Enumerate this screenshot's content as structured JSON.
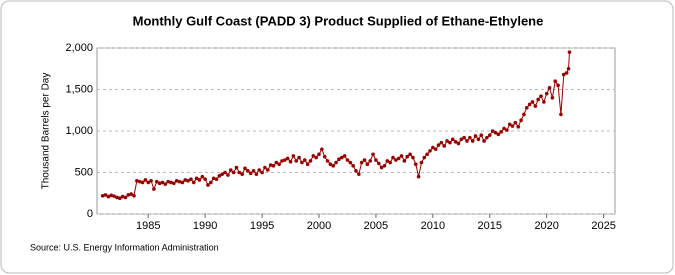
{
  "chart_data": {
    "type": "line",
    "title": "Monthly Gulf Coast (PADD 3) Product Supplied of Ethane-Ethylene",
    "y_label": "Thousand Barrels per Day",
    "source": "Source: U.S. Energy Information Administration",
    "color": "#990000",
    "grid": true,
    "xlim": [
      1980.5,
      2026
    ],
    "ylim": [
      0,
      2000
    ],
    "xticks": [
      1985,
      1990,
      1995,
      2000,
      2005,
      2010,
      2015,
      2020,
      2025
    ],
    "yticks": [
      0,
      500,
      {
        "value": 1000,
        "label": "1,000"
      },
      {
        "value": 1500,
        "label": "1,500"
      },
      {
        "value": 2000,
        "label": "2,000"
      }
    ],
    "x": [
      1981,
      1981.25,
      1981.5,
      1981.75,
      1982,
      1982.25,
      1982.5,
      1982.75,
      1983,
      1983.25,
      1983.5,
      1983.75,
      1984,
      1984.25,
      1984.5,
      1984.75,
      1985,
      1985.25,
      1985.5,
      1985.75,
      1986,
      1986.25,
      1986.5,
      1986.75,
      1987,
      1987.25,
      1987.5,
      1987.75,
      1988,
      1988.25,
      1988.5,
      1988.75,
      1989,
      1989.25,
      1989.5,
      1989.75,
      1990,
      1990.25,
      1990.5,
      1990.75,
      1991,
      1991.25,
      1991.5,
      1991.75,
      1992,
      1992.25,
      1992.5,
      1992.75,
      1993,
      1993.25,
      1993.5,
      1993.75,
      1994,
      1994.25,
      1994.5,
      1994.75,
      1995,
      1995.25,
      1995.5,
      1995.75,
      1996,
      1996.25,
      1996.5,
      1996.75,
      1997,
      1997.25,
      1997.5,
      1997.75,
      1998,
      1998.25,
      1998.5,
      1998.75,
      1999,
      1999.25,
      1999.5,
      1999.75,
      2000,
      2000.25,
      2000.5,
      2000.75,
      2001,
      2001.25,
      2001.5,
      2001.75,
      2002,
      2002.25,
      2002.5,
      2002.75,
      2003,
      2003.25,
      2003.5,
      2003.75,
      2004,
      2004.25,
      2004.5,
      2004.75,
      2005,
      2005.25,
      2005.5,
      2005.75,
      2006,
      2006.25,
      2006.5,
      2006.75,
      2007,
      2007.25,
      2007.5,
      2007.75,
      2008,
      2008.25,
      2008.5,
      2008.75,
      2009,
      2009.25,
      2009.5,
      2009.75,
      2010,
      2010.25,
      2010.5,
      2010.75,
      2011,
      2011.25,
      2011.5,
      2011.75,
      2012,
      2012.25,
      2012.5,
      2012.75,
      2013,
      2013.25,
      2013.5,
      2013.75,
      2014,
      2014.25,
      2014.5,
      2014.75,
      2015,
      2015.25,
      2015.5,
      2015.75,
      2016,
      2016.25,
      2016.5,
      2016.75,
      2017,
      2017.25,
      2017.5,
      2017.75,
      2018,
      2018.25,
      2018.5,
      2018.75,
      2019,
      2019.25,
      2019.5,
      2019.75,
      2020,
      2020.25,
      2020.5,
      2020.75,
      2021,
      2021.25,
      2021.5,
      2021.75,
      2021.92,
      2022
    ],
    "values": [
      220,
      230,
      210,
      225,
      215,
      200,
      190,
      210,
      200,
      230,
      240,
      220,
      400,
      390,
      380,
      410,
      380,
      400,
      300,
      390,
      370,
      380,
      360,
      390,
      380,
      370,
      400,
      390,
      380,
      410,
      400,
      420,
      380,
      430,
      410,
      450,
      420,
      350,
      380,
      430,
      420,
      460,
      480,
      500,
      470,
      530,
      500,
      560,
      500,
      480,
      550,
      520,
      490,
      520,
      480,
      530,
      500,
      560,
      530,
      590,
      580,
      620,
      600,
      640,
      650,
      670,
      630,
      700,
      640,
      680,
      620,
      650,
      600,
      640,
      700,
      680,
      720,
      780,
      690,
      640,
      600,
      580,
      620,
      660,
      680,
      700,
      650,
      620,
      580,
      520,
      480,
      620,
      650,
      600,
      640,
      720,
      650,
      610,
      560,
      580,
      640,
      620,
      680,
      650,
      670,
      700,
      640,
      690,
      720,
      680,
      600,
      450,
      620,
      680,
      720,
      760,
      800,
      780,
      830,
      860,
      820,
      880,
      860,
      900,
      870,
      850,
      900,
      920,
      880,
      920,
      880,
      940,
      900,
      950,
      880,
      920,
      950,
      1000,
      980,
      960,
      990,
      1030,
      1010,
      1080,
      1060,
      1100,
      1050,
      1130,
      1200,
      1280,
      1320,
      1350,
      1300,
      1380,
      1420,
      1350,
      1450,
      1520,
      1400,
      1600,
      1550,
      1200,
      1680,
      1700,
      1750,
      1950
    ]
  }
}
